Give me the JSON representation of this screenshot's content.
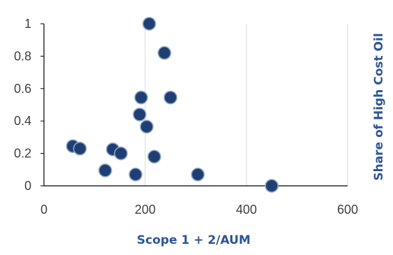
{
  "chart_data": {
    "type": "scatter",
    "title": "",
    "xlabel": "Scope 1 + 2/AUM",
    "ylabel": "Share of High Cost Oil",
    "xlim": [
      0,
      600
    ],
    "ylim": [
      0,
      1
    ],
    "x_ticks": [
      0,
      200,
      400,
      600
    ],
    "y_ticks": [
      0,
      0.2,
      0.4,
      0.6,
      0.8,
      1
    ],
    "x_tick_labels": [
      "0",
      "200",
      "400",
      "600"
    ],
    "y_tick_labels": [
      "0",
      "0.2",
      "0.4",
      "0.6",
      "0.8",
      "1"
    ],
    "grid": "vertical",
    "marker_color": "#1F3F73",
    "marker_edge_color": "#8FA6C8",
    "label_color": "#2E5597",
    "points": [
      {
        "x": 208,
        "y": 1.0
      },
      {
        "x": 238,
        "y": 0.82
      },
      {
        "x": 192,
        "y": 0.545
      },
      {
        "x": 250,
        "y": 0.545
      },
      {
        "x": 189,
        "y": 0.44
      },
      {
        "x": 203,
        "y": 0.365
      },
      {
        "x": 57,
        "y": 0.245
      },
      {
        "x": 71,
        "y": 0.23
      },
      {
        "x": 136,
        "y": 0.225
      },
      {
        "x": 152,
        "y": 0.2
      },
      {
        "x": 218,
        "y": 0.18
      },
      {
        "x": 121,
        "y": 0.095
      },
      {
        "x": 181,
        "y": 0.07
      },
      {
        "x": 304,
        "y": 0.07
      },
      {
        "x": 450,
        "y": 0.0
      }
    ]
  }
}
